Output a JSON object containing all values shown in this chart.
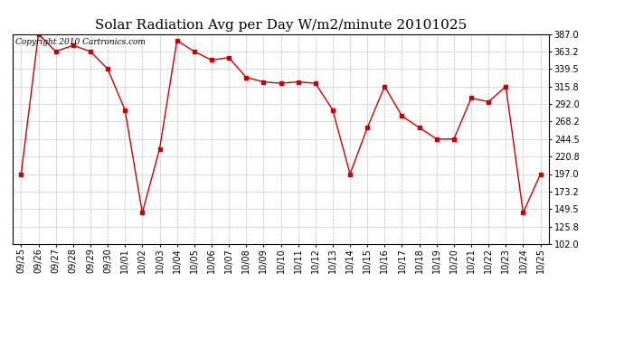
{
  "title": "Solar Radiation Avg per Day W/m2/minute 20101025",
  "copyright_text": "Copyright 2010 Cartronics.com",
  "dates": [
    "09/25",
    "09/26",
    "09/27",
    "09/28",
    "09/29",
    "09/30",
    "10/01",
    "10/02",
    "10/03",
    "10/04",
    "10/05",
    "10/06",
    "10/07",
    "10/08",
    "10/09",
    "10/10",
    "10/11",
    "10/12",
    "10/13",
    "10/14",
    "10/15",
    "10/16",
    "10/17",
    "10/18",
    "10/19",
    "10/20",
    "10/21",
    "10/22",
    "10/23",
    "10/24",
    "10/25"
  ],
  "values": [
    197.0,
    387.0,
    363.2,
    371.5,
    363.2,
    339.5,
    283.8,
    144.5,
    231.3,
    378.0,
    363.2,
    351.5,
    355.0,
    328.0,
    322.0,
    320.0,
    322.0,
    320.0,
    283.8,
    197.0,
    260.0,
    315.8,
    275.5,
    260.0,
    244.5,
    244.5,
    300.0,
    295.0,
    315.8,
    144.5,
    197.0
  ],
  "line_color": "#cc0000",
  "marker": "s",
  "marker_size": 2.5,
  "bg_color": "#ffffff",
  "grid_color": "#bbbbbb",
  "yticks": [
    102.0,
    125.8,
    149.5,
    173.2,
    197.0,
    220.8,
    244.5,
    268.2,
    292.0,
    315.8,
    339.5,
    363.2,
    387.0
  ],
  "ymin": 102.0,
  "ymax": 387.0,
  "title_fontsize": 11,
  "tick_fontsize": 7,
  "copyright_fontsize": 6.5
}
